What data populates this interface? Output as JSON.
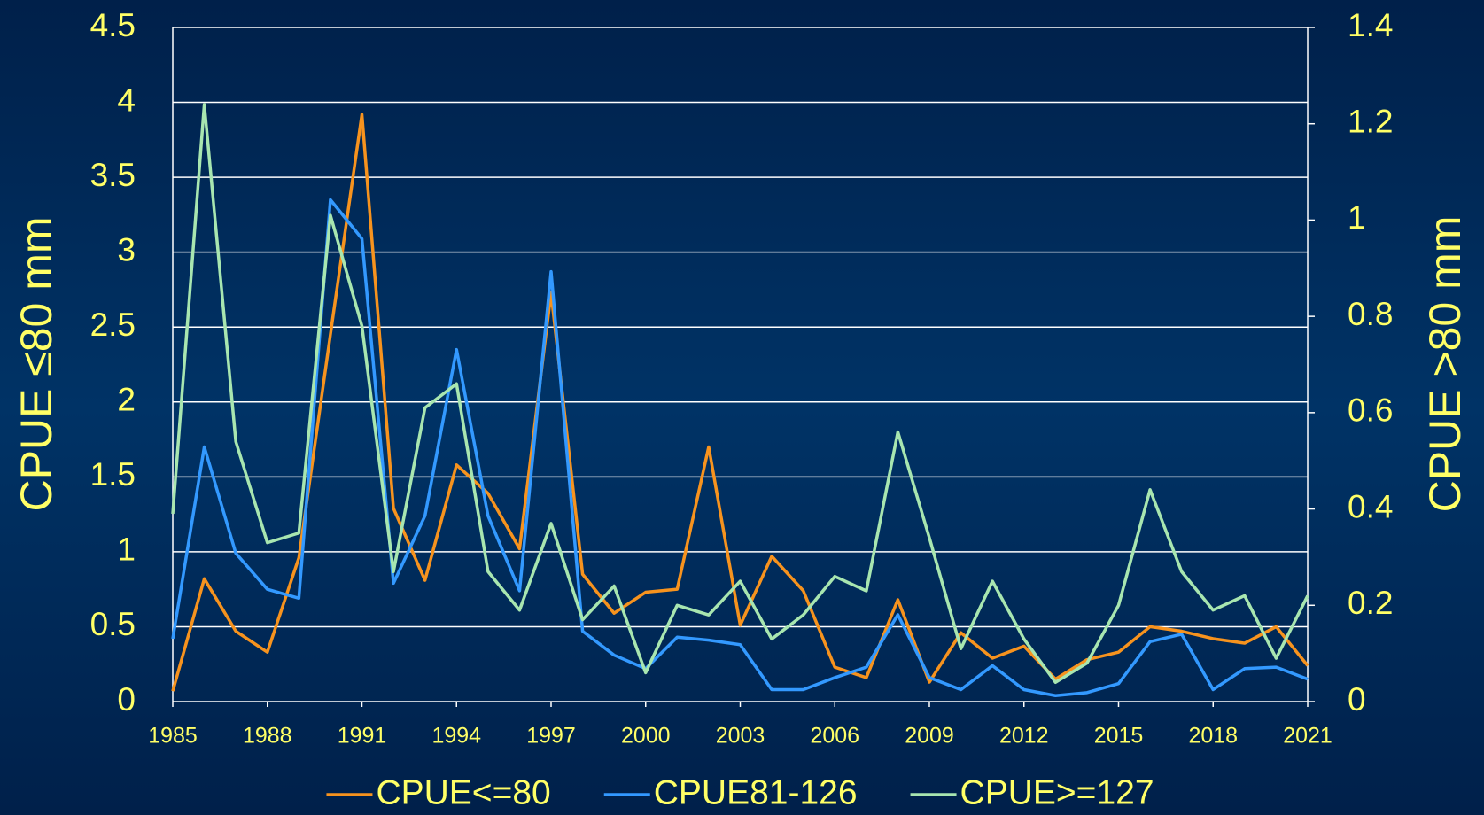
{
  "chart_data": {
    "type": "line",
    "y_label": "CPUE ≤80 mm",
    "y2_label": "CPUE >80 mm",
    "x": [
      1985,
      1986,
      1987,
      1988,
      1989,
      1990,
      1991,
      1992,
      1993,
      1994,
      1995,
      1996,
      1997,
      1998,
      1999,
      2000,
      2001,
      2002,
      2003,
      2004,
      2005,
      2006,
      2007,
      2008,
      2009,
      2010,
      2011,
      2012,
      2013,
      2014,
      2015,
      2016,
      2017,
      2018,
      2019,
      2020,
      2021
    ],
    "xlim": [
      1985,
      2021
    ],
    "xticks": [
      1985,
      1988,
      1991,
      1994,
      1997,
      2000,
      2003,
      2006,
      2009,
      2012,
      2015,
      2018,
      2021
    ],
    "ylim": [
      0,
      4.5
    ],
    "yticks": [
      0,
      0.5,
      1,
      1.5,
      2,
      2.5,
      3,
      3.5,
      4,
      4.5
    ],
    "y2lim": [
      0,
      1.4
    ],
    "y2ticks": [
      0,
      0.2,
      0.4,
      0.6,
      0.8,
      1,
      1.2,
      1.4
    ],
    "grid": true,
    "legend": "bottom",
    "series": [
      {
        "name": "CPUE<=80",
        "color": "#f7931e",
        "axis": "y",
        "values": [
          0.07,
          0.82,
          0.47,
          0.33,
          0.96,
          2.45,
          3.92,
          1.29,
          0.81,
          1.58,
          1.39,
          1.02,
          2.73,
          0.85,
          0.59,
          0.73,
          0.75,
          1.7,
          0.51,
          0.97,
          0.74,
          0.23,
          0.16,
          0.68,
          0.13,
          0.46,
          0.29,
          0.37,
          0.15,
          0.28,
          0.33,
          0.5,
          0.47,
          0.42,
          0.39,
          0.5,
          0.24
        ]
      },
      {
        "name": "CPUE81-126",
        "color": "#3399ff",
        "axis": "y",
        "values": [
          0.42,
          1.7,
          0.99,
          0.75,
          0.69,
          3.35,
          3.09,
          0.79,
          1.24,
          2.35,
          1.24,
          0.74,
          2.87,
          0.47,
          0.31,
          0.22,
          0.43,
          0.41,
          0.38,
          0.08,
          0.08,
          0.16,
          0.23,
          0.58,
          0.16,
          0.08,
          0.24,
          0.08,
          0.04,
          0.06,
          0.12,
          0.4,
          0.45,
          0.08,
          0.22,
          0.23,
          0.15
        ]
      },
      {
        "name": "CPUE>=127",
        "color": "#a8e6b0",
        "axis": "y2",
        "values": [
          0.39,
          1.24,
          0.54,
          0.33,
          0.35,
          1.01,
          0.78,
          0.27,
          0.61,
          0.66,
          0.27,
          0.19,
          0.37,
          0.17,
          0.24,
          0.06,
          0.2,
          0.18,
          0.25,
          0.13,
          0.18,
          0.26,
          0.23,
          0.56,
          0.34,
          0.11,
          0.25,
          0.13,
          0.04,
          0.08,
          0.2,
          0.44,
          0.27,
          0.19,
          0.22,
          0.09,
          0.22
        ]
      }
    ]
  }
}
